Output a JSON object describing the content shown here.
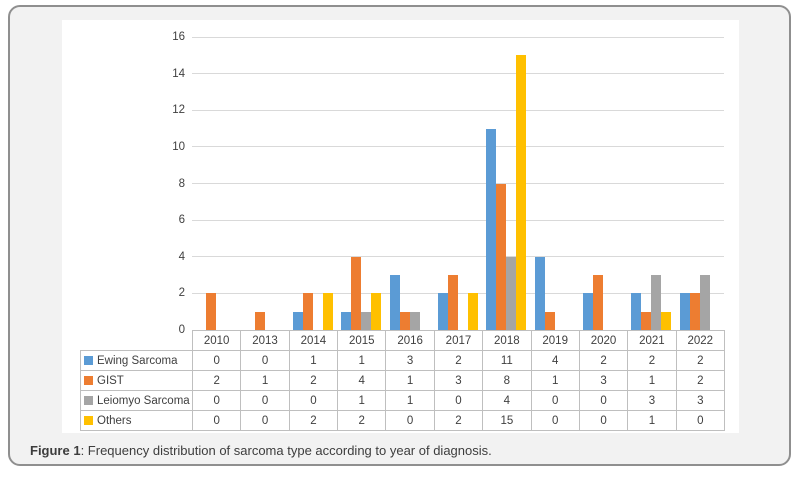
{
  "figure": {
    "caption_label": "Figure 1",
    "caption_text": ": Frequency distribution of sarcoma type according to year of diagnosis."
  },
  "colors": {
    "accent_blue": "#5B9BD5",
    "accent_orange": "#ED7D31",
    "accent_gray": "#A5A5A5",
    "accent_yellow": "#FFC000",
    "gridline": "#D9D9D9",
    "table_border": "#BFBFBF",
    "text": "#404040",
    "card_background": "#F2F2F2",
    "card_border": "#8F8F8F"
  },
  "chart_data": {
    "type": "bar",
    "title": "",
    "xlabel": "",
    "ylabel": "",
    "categories": [
      "2010",
      "2013",
      "2014",
      "2015",
      "2016",
      "2017",
      "2018",
      "2019",
      "2020",
      "2021",
      "2022"
    ],
    "series": [
      {
        "name": "Ewing Sarcoma",
        "color": "#5B9BD5",
        "values": [
          0,
          0,
          1,
          1,
          3,
          2,
          11,
          4,
          2,
          2,
          2
        ]
      },
      {
        "name": "GIST",
        "color": "#ED7D31",
        "values": [
          2,
          1,
          2,
          4,
          1,
          3,
          8,
          1,
          3,
          1,
          2
        ]
      },
      {
        "name": "Leiomyo Sarcoma",
        "color": "#A5A5A5",
        "values": [
          0,
          0,
          0,
          1,
          1,
          0,
          4,
          0,
          0,
          3,
          3
        ]
      },
      {
        "name": "Others",
        "color": "#FFC000",
        "values": [
          0,
          0,
          2,
          2,
          0,
          2,
          15,
          0,
          0,
          1,
          0
        ]
      }
    ],
    "ylim": [
      0,
      16
    ],
    "ytick_step": 2,
    "grid": true,
    "legend_position": "data-table-left-column"
  }
}
